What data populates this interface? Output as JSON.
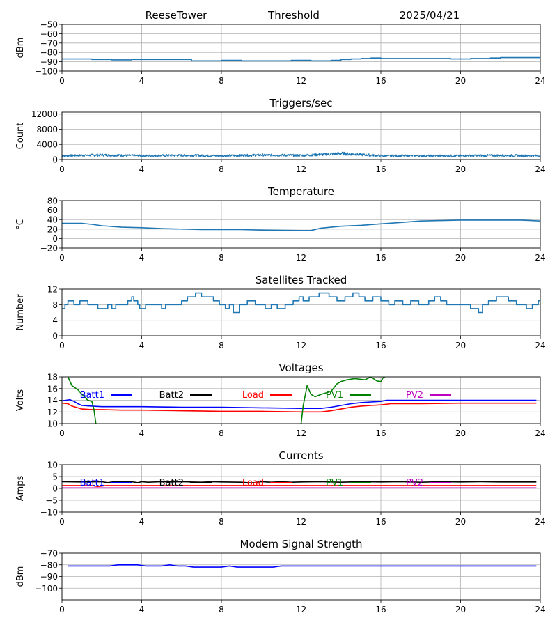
{
  "header": {
    "station": "ReeseTower",
    "title": "Threshold",
    "date": "2025/04/21"
  },
  "chart_data": [
    {
      "id": "threshold",
      "type": "line",
      "title": "",
      "xlabel": "",
      "ylabel": "dBm",
      "xlim": [
        0,
        24
      ],
      "ylim": [
        -100,
        -50
      ],
      "xticks": [
        "0",
        "4",
        "8",
        "12",
        "16",
        "20",
        "24"
      ],
      "yticks": [
        "−100",
        "−90",
        "−80",
        "−70",
        "−60",
        "−50"
      ],
      "grid": true,
      "legend": null,
      "series": [
        {
          "color": "#1f77b4",
          "step": true,
          "x": [
            0,
            1.5,
            2.5,
            3.5,
            6.5,
            8.0,
            9.0,
            10.0,
            11.5,
            12.5,
            13.5,
            14.0,
            14.5,
            15.0,
            15.5,
            16.0,
            19.0,
            19.5,
            20.0,
            20.5,
            21.5,
            22.0,
            23.0,
            24.0
          ],
          "y": [
            -87,
            -87.5,
            -88,
            -87.5,
            -89,
            -88.5,
            -89,
            -89,
            -88.5,
            -89,
            -88.5,
            -87.5,
            -87,
            -86.5,
            -86,
            -86.5,
            -86.5,
            -87,
            -87,
            -86.5,
            -86,
            -85.5,
            -85.5,
            -85.5
          ]
        }
      ]
    },
    {
      "id": "triggers",
      "type": "line",
      "title": "Triggers/sec",
      "xlabel": "",
      "ylabel": "Count",
      "xlim": [
        0,
        24
      ],
      "ylim": [
        0,
        12500
      ],
      "xticks": [
        "0",
        "4",
        "8",
        "12",
        "16",
        "20",
        "24"
      ],
      "yticks": [
        "0",
        "4000",
        "8000",
        "12000"
      ],
      "ytick_values": [
        0,
        4000,
        8000,
        12000
      ],
      "grid": true,
      "legend": null,
      "series": [
        {
          "color": "#1f77b4",
          "noisy": true,
          "x": [
            0,
            2,
            4,
            6,
            8,
            10,
            12,
            13,
            14,
            15,
            16,
            18,
            20,
            22,
            24
          ],
          "y": [
            1000,
            1200,
            1000,
            1100,
            1000,
            1200,
            1100,
            1300,
            1600,
            1300,
            1000,
            1000,
            1000,
            1100,
            1000
          ]
        }
      ]
    },
    {
      "id": "temperature",
      "type": "line",
      "title": "Temperature",
      "xlabel": "",
      "ylabel": "°C",
      "xlim": [
        0,
        24
      ],
      "ylim": [
        -20,
        80
      ],
      "xticks": [
        "0",
        "4",
        "8",
        "12",
        "16",
        "20",
        "24"
      ],
      "yticks": [
        "−20",
        "0",
        "20",
        "40",
        "60",
        "80"
      ],
      "ytick_values": [
        -20,
        0,
        20,
        40,
        60,
        80
      ],
      "grid": true,
      "legend": null,
      "series": [
        {
          "color": "#1f77b4",
          "x": [
            0,
            1.0,
            1.5,
            2.0,
            3.0,
            4.0,
            5.0,
            7.0,
            9.0,
            10.0,
            12.0,
            12.5,
            13.0,
            14.0,
            15.0,
            16.0,
            17.0,
            18.0,
            19.0,
            20.0,
            22.0,
            23.0,
            24.0
          ],
          "y": [
            32,
            32,
            30,
            27,
            24,
            23,
            21,
            19,
            19,
            18,
            17,
            17,
            22,
            26,
            28,
            31,
            34,
            37,
            38,
            39,
            39,
            39,
            37
          ]
        }
      ]
    },
    {
      "id": "satellites",
      "type": "line",
      "title": "Satellites Tracked",
      "xlabel": "",
      "ylabel": "Number",
      "xlim": [
        0,
        24
      ],
      "ylim": [
        0,
        12
      ],
      "xticks": [
        "0",
        "4",
        "8",
        "12",
        "16",
        "20",
        "24"
      ],
      "yticks": [
        "0",
        "4",
        "8",
        "12"
      ],
      "ytick_values": [
        0,
        4,
        8,
        12
      ],
      "grid": true,
      "legend": null,
      "series": [
        {
          "color": "#1f77b4",
          "step": true,
          "x": [
            0,
            0.15,
            0.3,
            0.6,
            0.9,
            1.3,
            1.8,
            2.3,
            2.5,
            2.7,
            3.3,
            3.5,
            3.6,
            3.8,
            3.9,
            4.2,
            4.8,
            5.0,
            5.2,
            6.0,
            6.3,
            6.7,
            7.0,
            7.6,
            7.9,
            8.2,
            8.4,
            8.6,
            8.9,
            9.3,
            9.7,
            10.2,
            10.5,
            10.8,
            11.2,
            11.6,
            11.9,
            12.1,
            12.4,
            12.9,
            13.4,
            13.8,
            14.2,
            14.6,
            14.9,
            15.2,
            15.6,
            16.0,
            16.4,
            16.7,
            17.1,
            17.5,
            17.9,
            18.4,
            18.7,
            19.0,
            19.3,
            19.9,
            20.5,
            20.9,
            21.1,
            21.4,
            21.8,
            22.4,
            22.8,
            23.3,
            23.6,
            23.9,
            24.0
          ],
          "y": [
            7,
            8,
            9,
            8,
            9,
            8,
            7,
            8,
            7,
            8,
            9,
            10,
            9,
            8,
            7,
            8,
            8,
            7,
            8,
            9,
            10,
            11,
            10,
            9,
            8,
            7,
            8,
            6,
            8,
            9,
            8,
            7,
            8,
            7,
            8,
            9,
            10,
            9,
            10,
            11,
            10,
            9,
            10,
            11,
            10,
            9,
            10,
            9,
            8,
            9,
            8,
            9,
            8,
            9,
            10,
            9,
            8,
            8,
            7,
            6,
            8,
            9,
            10,
            9,
            8,
            7,
            8,
            9,
            7
          ]
        }
      ]
    },
    {
      "id": "voltages",
      "type": "line",
      "title": "Voltages",
      "xlabel": "",
      "ylabel": "Volts",
      "xlim": [
        0,
        24
      ],
      "ylim": [
        10,
        18
      ],
      "xticks": [
        "0",
        "4",
        "8",
        "12",
        "16",
        "20",
        "24"
      ],
      "yticks": [
        "10",
        "12",
        "14",
        "16",
        "18"
      ],
      "ytick_values": [
        10,
        12,
        14,
        16,
        18
      ],
      "grid": true,
      "legend": {
        "placement": "top",
        "entries": [
          {
            "label": "Batt1",
            "color": "#0000ff"
          },
          {
            "label": "Batt2",
            "color": "#000000"
          },
          {
            "label": "Load",
            "color": "#ff0000"
          },
          {
            "label": "PV1",
            "color": "#008000"
          },
          {
            "label": "PV2",
            "color": "#bf00bf"
          }
        ]
      },
      "series": [
        {
          "name": "Batt1",
          "color": "#0000ff",
          "x": [
            0,
            0.2,
            0.4,
            0.6,
            0.8,
            1.0,
            1.5,
            2.0,
            3.0,
            4.0,
            6.0,
            8.0,
            10.0,
            12.0,
            13.0,
            13.5,
            14.0,
            14.5,
            15.0,
            15.5,
            16.0,
            16.3,
            17.0,
            18.0,
            20.0,
            22.0,
            23.8
          ],
          "y": [
            13.9,
            14.0,
            14.1,
            13.8,
            13.4,
            13.1,
            13.0,
            12.9,
            12.9,
            12.9,
            12.8,
            12.8,
            12.7,
            12.6,
            12.6,
            12.8,
            13.1,
            13.4,
            13.6,
            13.7,
            13.8,
            14.0,
            14.0,
            14.0,
            14.0,
            14.0,
            14.0
          ]
        },
        {
          "name": "Load",
          "color": "#ff0000",
          "x": [
            0,
            0.3,
            0.5,
            0.8,
            1.0,
            1.5,
            2.0,
            3.0,
            4.0,
            6.0,
            8.0,
            10.0,
            12.0,
            13.0,
            13.5,
            14.0,
            14.5,
            15.0,
            15.5,
            16.0,
            16.5,
            17.0,
            18.0,
            20.0,
            22.0,
            23.8
          ],
          "y": [
            13.5,
            13.4,
            13.0,
            12.7,
            12.5,
            12.4,
            12.4,
            12.3,
            12.3,
            12.2,
            12.1,
            12.1,
            12.0,
            12.0,
            12.2,
            12.5,
            12.8,
            13.0,
            13.1,
            13.2,
            13.4,
            13.4,
            13.4,
            13.5,
            13.5,
            13.5
          ]
        },
        {
          "name": "PV1",
          "color": "#008000",
          "x": [
            0.3,
            0.5,
            0.8,
            1.0,
            1.3,
            1.5,
            1.6,
            1.7
          ],
          "y": [
            18.0,
            16.5,
            15.8,
            15.0,
            14.0,
            13.8,
            12.5,
            10.0
          ]
        },
        {
          "name": "PV1",
          "color": "#008000",
          "x": [
            12.0,
            12.1,
            12.3,
            12.5,
            12.7,
            13.0,
            13.5,
            13.8,
            14.0,
            14.3,
            14.7,
            15.2,
            15.5,
            15.8,
            16.0,
            16.1,
            16.2
          ],
          "y": [
            10.0,
            13.0,
            16.5,
            15.0,
            14.6,
            15.0,
            15.5,
            16.8,
            17.2,
            17.5,
            17.7,
            17.5,
            18.0,
            17.3,
            17.2,
            17.8,
            18.0
          ]
        }
      ]
    },
    {
      "id": "currents",
      "type": "line",
      "title": "Currents",
      "xlabel": "",
      "ylabel": "Amps",
      "xlim": [
        0,
        24
      ],
      "ylim": [
        -10,
        10
      ],
      "xticks": [
        "0",
        "4",
        "8",
        "12",
        "16",
        "20",
        "24"
      ],
      "yticks": [
        "−10",
        "−5",
        "0",
        "5",
        "10"
      ],
      "ytick_values": [
        -10,
        -5,
        0,
        5,
        10
      ],
      "grid": true,
      "legend": {
        "placement": "top",
        "entries": [
          {
            "label": "Batt1",
            "color": "#0000ff"
          },
          {
            "label": "Batt2",
            "color": "#000000"
          },
          {
            "label": "Load",
            "color": "#ff0000"
          },
          {
            "label": "PV1",
            "color": "#008000"
          },
          {
            "label": "PV2",
            "color": "#bf00bf"
          }
        ]
      },
      "series": [
        {
          "name": "Batt2",
          "color": "#000000",
          "x": [
            0,
            1,
            2,
            2.3,
            2.6,
            3,
            3.5,
            3.8,
            4,
            4.3,
            5,
            5.5,
            6,
            7,
            7.5,
            8,
            9,
            9.5,
            10,
            10.5,
            11,
            11.5,
            12,
            13,
            14,
            15,
            16,
            17,
            18,
            19,
            20,
            21,
            22,
            23,
            23.8
          ],
          "y": [
            2.8,
            2.7,
            2.8,
            2.4,
            2.8,
            2.7,
            2.8,
            2.4,
            2.8,
            2.6,
            2.8,
            2.7,
            2.8,
            2.6,
            2.8,
            2.7,
            2.6,
            2.3,
            2.8,
            2.6,
            2.8,
            2.6,
            2.7,
            2.8,
            2.6,
            2.8,
            2.7,
            2.8,
            2.6,
            2.8,
            2.7,
            2.8,
            2.7,
            2.7,
            2.7
          ]
        },
        {
          "name": "Load",
          "color": "#ff0000",
          "x": [
            0,
            1.5,
            1.8,
            2.2,
            4,
            8,
            12,
            16,
            20,
            23.8
          ],
          "y": [
            1.2,
            1.2,
            0.8,
            1.2,
            1.2,
            1.2,
            1.2,
            1.2,
            1.2,
            1.2
          ]
        },
        {
          "name": "PV2",
          "color": "#bf00bf",
          "x": [
            0,
            23.8
          ],
          "y": [
            0.2,
            0.2
          ]
        }
      ]
    },
    {
      "id": "modem",
      "type": "line",
      "title": "Modem Signal Strength",
      "xlabel": "",
      "ylabel": "dBm",
      "xlim": [
        0,
        24
      ],
      "ylim": [
        -110,
        -70
      ],
      "xticks": [
        "0",
        "4",
        "8",
        "12",
        "16",
        "20",
        "24"
      ],
      "yticks": [
        "−100",
        "−90",
        "−80",
        "−70"
      ],
      "ytick_values": [
        -100,
        -90,
        -80,
        -70
      ],
      "grid": true,
      "legend": null,
      "series": [
        {
          "color": "#0000ff",
          "x": [
            0.3,
            1,
            2,
            2.4,
            2.8,
            3.8,
            4.2,
            4.6,
            5,
            5.4,
            5.8,
            6.2,
            6.6,
            7,
            7.6,
            8,
            8.4,
            8.8,
            9.2,
            10,
            10.6,
            11,
            12,
            13,
            14,
            16,
            18,
            20,
            22,
            23.8
          ],
          "y": [
            -81,
            -81,
            -81,
            -81,
            -80,
            -80,
            -81,
            -81,
            -81,
            -80,
            -81,
            -81,
            -82,
            -82,
            -82,
            -82,
            -81,
            -82,
            -82,
            -82,
            -82,
            -81,
            -81,
            -81,
            -81,
            -81,
            -81,
            -81,
            -81,
            -81
          ]
        }
      ]
    }
  ]
}
